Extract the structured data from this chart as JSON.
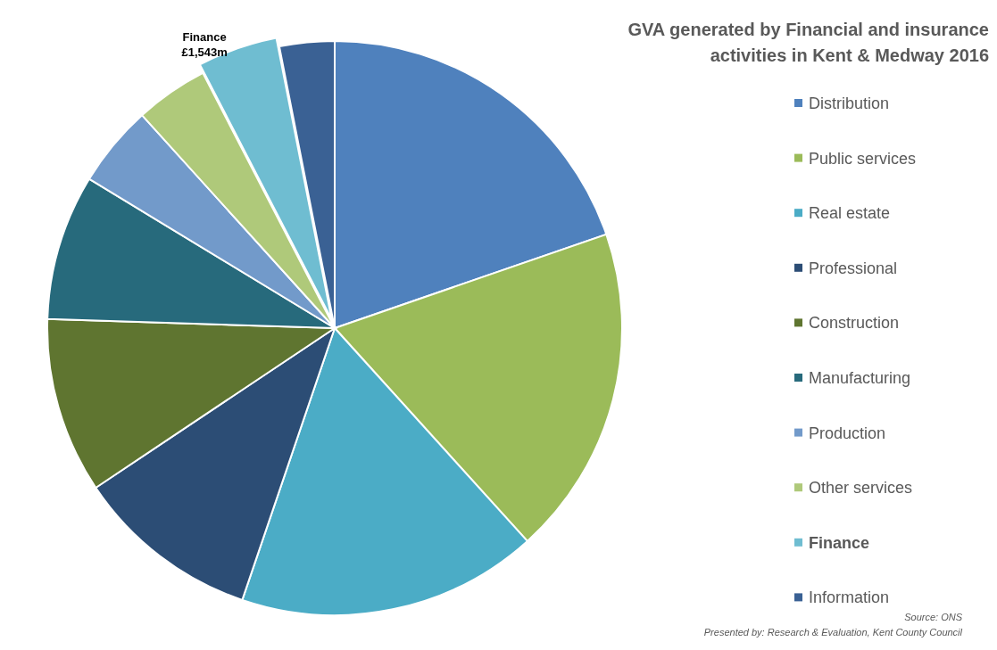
{
  "chart_data": {
    "type": "pie",
    "title": "GVA generated by Financial and insurance activities in Kent & Medway 2016",
    "categories": [
      "Distribution",
      "Public services",
      "Real estate",
      "Professional",
      "Construction",
      "Manufacturing",
      "Production",
      "Other services",
      "Finance",
      "Information"
    ],
    "values": [
      6760,
      6380,
      5800,
      3570,
      3390,
      2810,
      1580,
      1410,
      1543,
      1060
    ],
    "value_labels": [
      null,
      null,
      null,
      null,
      null,
      null,
      null,
      null,
      "£1,543m",
      null
    ],
    "colors": [
      "#4f81bd",
      "#9bbb59",
      "#4bacc6",
      "#2c4d75",
      "#5f7530",
      "#276a7c",
      "#729aca",
      "#afc97a",
      "#6fbdd1",
      "#3a6194"
    ],
    "legend": "right",
    "annotations": [
      "Source: ONS",
      "Presented by: Research & Evaluation, Kent County Council"
    ]
  }
}
